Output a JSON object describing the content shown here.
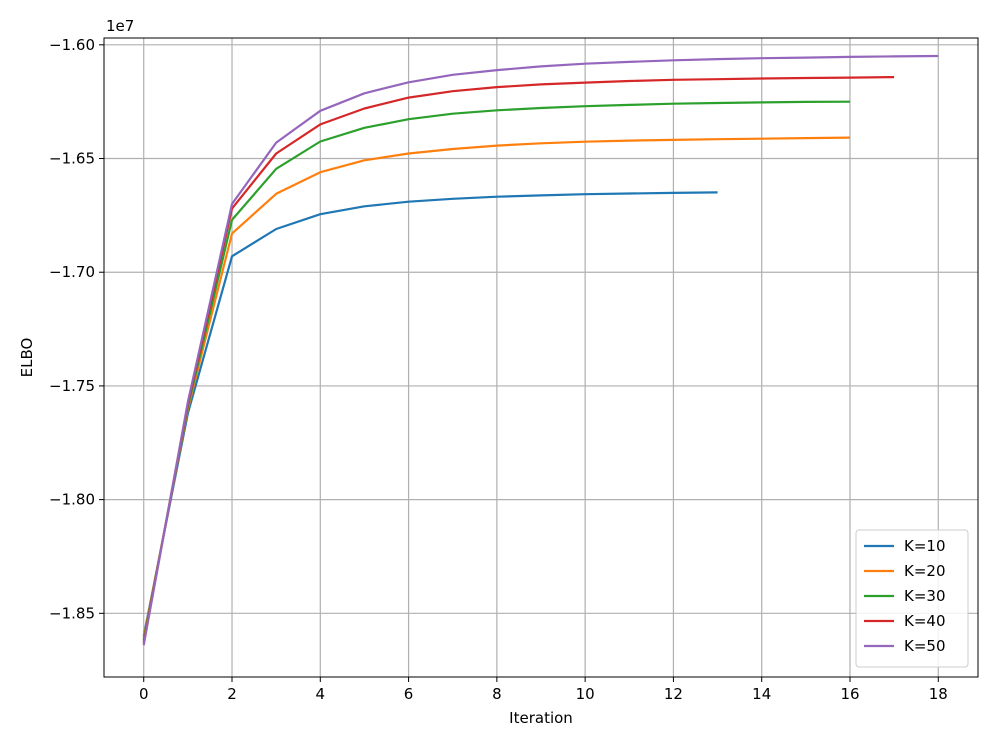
{
  "chart_data": {
    "type": "line",
    "title": "",
    "xlabel": "Iteration",
    "ylabel": "ELBO",
    "y_offset_label": "1e7",
    "xlim": [
      -0.9,
      18.9
    ],
    "ylim": [
      -18.78,
      -15.97
    ],
    "x_ticks": [
      0,
      2,
      4,
      6,
      8,
      10,
      12,
      14,
      16,
      18
    ],
    "y_ticks": [
      -18.5,
      -18.0,
      -17.5,
      -17.0,
      -16.5,
      -16.0
    ],
    "y_tick_labels": [
      "−1.85",
      "−1.80",
      "−1.75",
      "−1.70",
      "−1.65",
      "−1.60"
    ],
    "grid": true,
    "legend_position": "bottom-right",
    "series": [
      {
        "name": "K=10",
        "color": "#1f77b4",
        "x": [
          0,
          1,
          2,
          3,
          4,
          5,
          6,
          7,
          8,
          9,
          10,
          11,
          12,
          13
        ],
        "values": [
          -18.6,
          -17.62,
          -16.93,
          -16.81,
          -16.745,
          -16.71,
          -16.69,
          -16.677,
          -16.668,
          -16.662,
          -16.657,
          -16.654,
          -16.651,
          -16.649
        ]
      },
      {
        "name": "K=20",
        "color": "#ff7f0e",
        "x": [
          0,
          1,
          2,
          3,
          4,
          5,
          6,
          7,
          8,
          9,
          10,
          11,
          12,
          13,
          14,
          15,
          16
        ],
        "values": [
          -18.61,
          -17.6,
          -16.83,
          -16.655,
          -16.56,
          -16.508,
          -16.478,
          -16.458,
          -16.443,
          -16.433,
          -16.426,
          -16.421,
          -16.418,
          -16.415,
          -16.413,
          -16.41,
          -16.408
        ]
      },
      {
        "name": "K=30",
        "color": "#2ca02c",
        "x": [
          0,
          1,
          2,
          3,
          4,
          5,
          6,
          7,
          8,
          9,
          10,
          11,
          12,
          13,
          14,
          15,
          16
        ],
        "values": [
          -18.62,
          -17.59,
          -16.77,
          -16.545,
          -16.425,
          -16.365,
          -16.327,
          -16.303,
          -16.288,
          -16.278,
          -16.27,
          -16.264,
          -16.259,
          -16.256,
          -16.253,
          -16.251,
          -16.25
        ]
      },
      {
        "name": "K=40",
        "color": "#d62728",
        "x": [
          0,
          1,
          2,
          3,
          4,
          5,
          6,
          7,
          8,
          9,
          10,
          11,
          12,
          13,
          14,
          15,
          16,
          17
        ],
        "values": [
          -18.63,
          -17.58,
          -16.72,
          -16.478,
          -16.35,
          -16.28,
          -16.232,
          -16.204,
          -16.186,
          -16.174,
          -16.166,
          -16.159,
          -16.154,
          -16.151,
          -16.148,
          -16.146,
          -16.144,
          -16.142
        ]
      },
      {
        "name": "K=50",
        "color": "#9467bd",
        "x": [
          0,
          1,
          2,
          3,
          4,
          5,
          6,
          7,
          8,
          9,
          10,
          11,
          12,
          13,
          14,
          15,
          16,
          17,
          18
        ],
        "values": [
          -18.64,
          -17.57,
          -16.7,
          -16.43,
          -16.29,
          -16.213,
          -16.165,
          -16.132,
          -16.111,
          -16.095,
          -16.083,
          -16.075,
          -16.068,
          -16.063,
          -16.059,
          -16.056,
          -16.053,
          -16.051,
          -16.049
        ]
      }
    ]
  }
}
